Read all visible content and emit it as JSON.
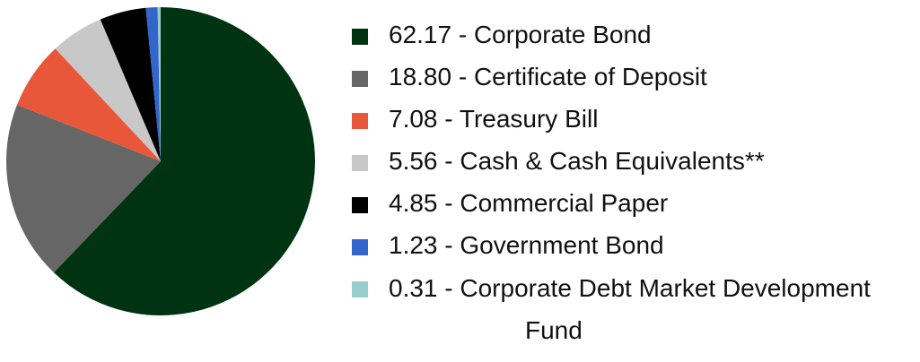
{
  "chart_data": {
    "type": "pie",
    "categories": [
      "62.17 - Corporate Bond",
      "18.80 - Certificate of Deposit",
      "7.08 - Treasury Bill",
      "5.56 - Cash & Cash Equivalents**",
      "4.85 - Commercial Paper",
      "1.23 - Government Bond",
      "0.31 - Corporate Debt Market Development Fund"
    ],
    "values": [
      62.17,
      18.8,
      7.08,
      5.56,
      4.85,
      1.23,
      0.31
    ],
    "colors": [
      "#003311",
      "#666666",
      "#e8573a",
      "#c8c8c8",
      "#000000",
      "#3366cc",
      "#99cccc"
    ]
  }
}
